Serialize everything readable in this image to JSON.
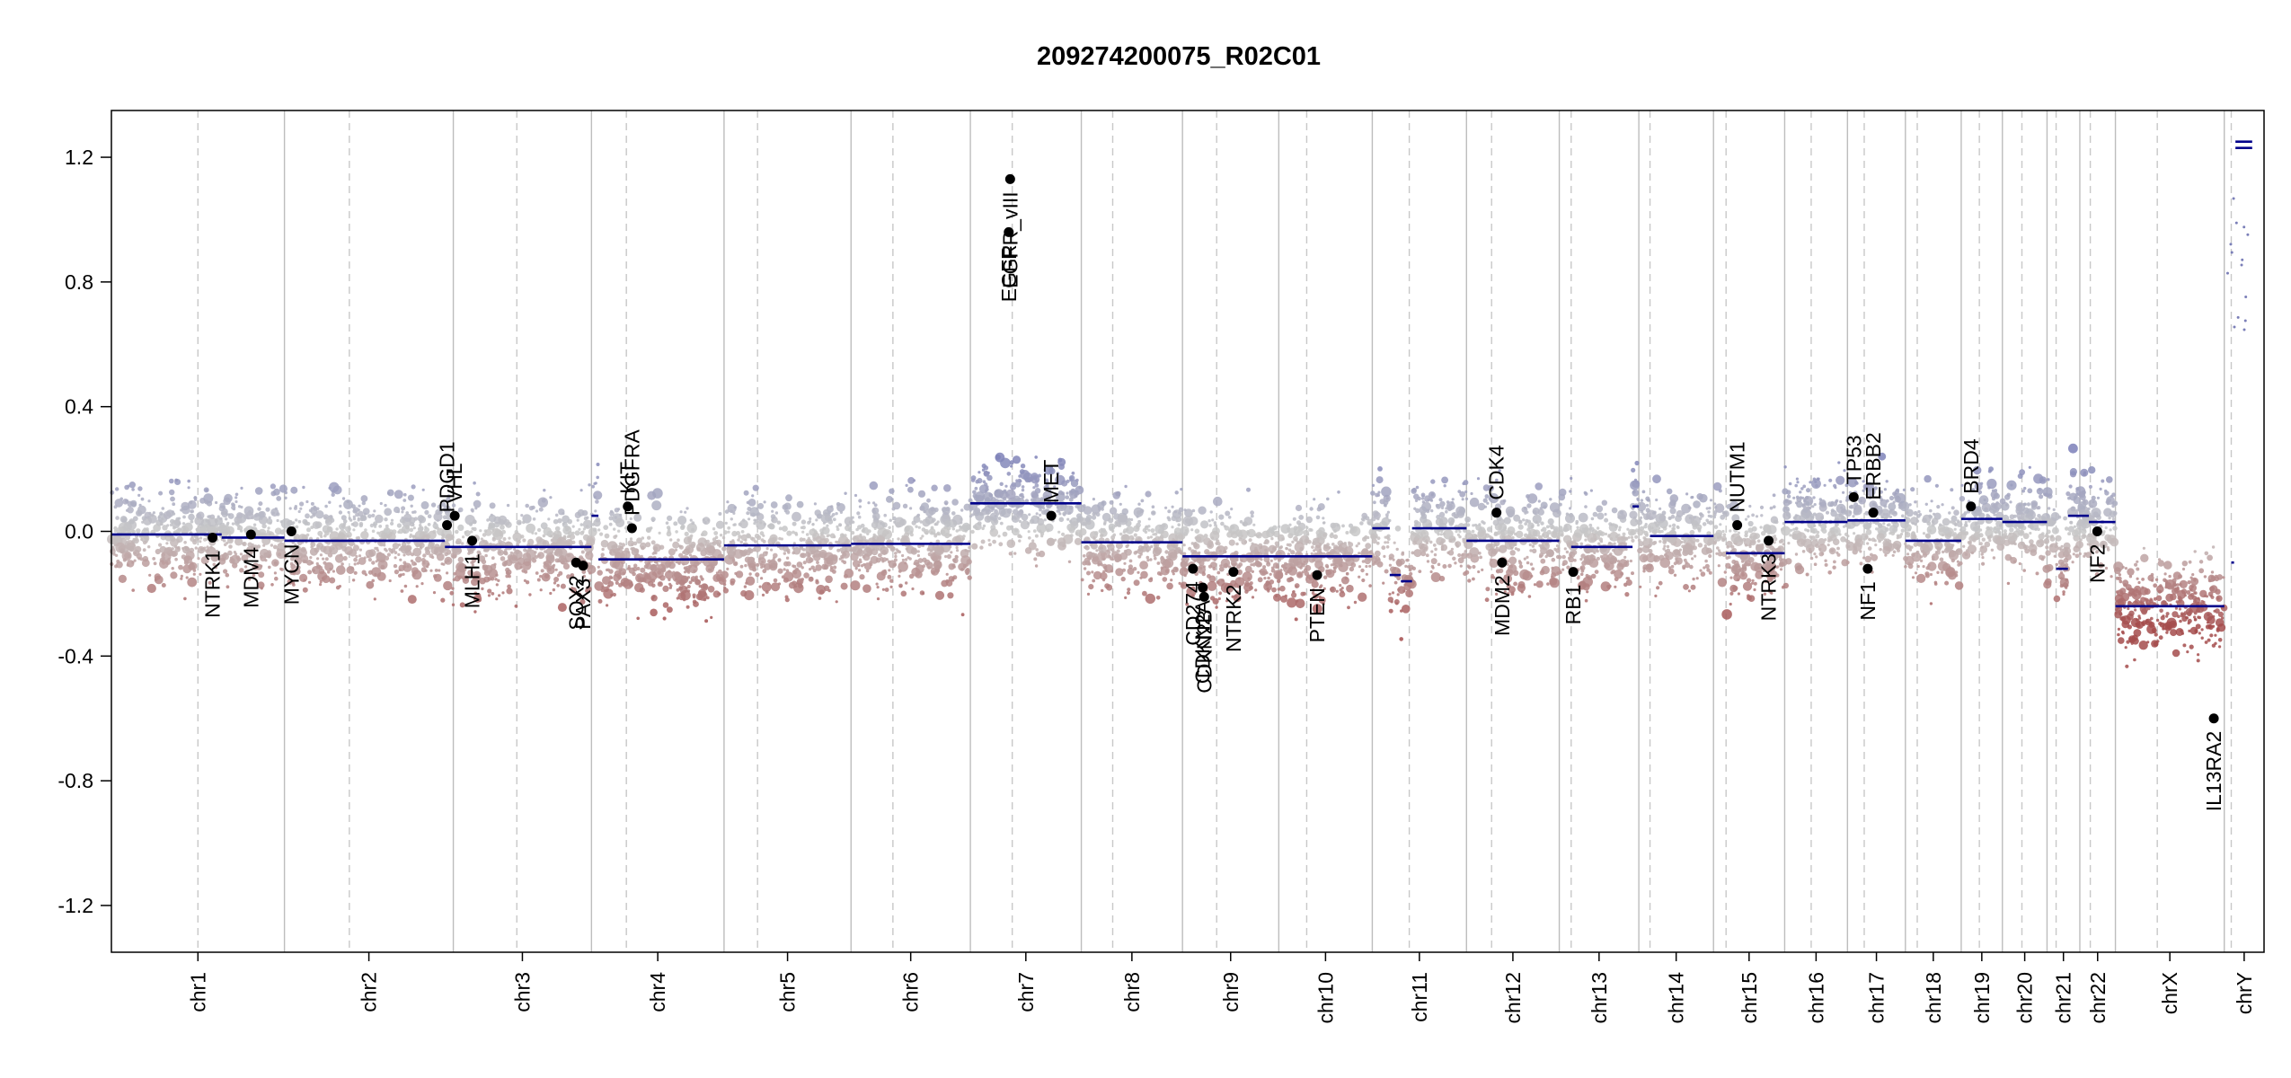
{
  "chart_data": {
    "type": "scatter",
    "title": "209274200075_R02C01",
    "xlabel": "",
    "ylabel": "",
    "ylim": [
      -1.35,
      1.35
    ],
    "y_ticks": [
      "-1.2",
      "-0.8",
      "-0.4",
      "0.0",
      "0.4",
      "0.8",
      "1.2"
    ],
    "grid": "chromosome boundaries (solid) and centromeres (dashed)",
    "colors": {
      "gain": "#7B7FB8",
      "neutral": "#C8C8C8",
      "loss": "#A44C4C",
      "segment": "#00008B",
      "gene": "#000000",
      "boundary": "#BDBDBD",
      "centromere": "#C8C8C8"
    },
    "chromosomes": [
      {
        "name": "chr1",
        "start": 0,
        "end": 248,
        "cen": 124
      },
      {
        "name": "chr2",
        "start": 248,
        "end": 490,
        "cen": 341
      },
      {
        "name": "chr3",
        "start": 490,
        "end": 688,
        "cen": 581
      },
      {
        "name": "chr4",
        "start": 688,
        "end": 878,
        "cen": 738
      },
      {
        "name": "chr5",
        "start": 878,
        "end": 1060,
        "cen": 926
      },
      {
        "name": "chr6",
        "start": 1060,
        "end": 1231,
        "cen": 1120
      },
      {
        "name": "chr7",
        "start": 1231,
        "end": 1390,
        "cen": 1291
      },
      {
        "name": "chr8",
        "start": 1390,
        "end": 1535,
        "cen": 1435
      },
      {
        "name": "chr9",
        "start": 1535,
        "end": 1673,
        "cen": 1584
      },
      {
        "name": "chr10",
        "start": 1673,
        "end": 1807,
        "cen": 1713
      },
      {
        "name": "chr11",
        "start": 1807,
        "end": 1942,
        "cen": 1860
      },
      {
        "name": "chr12",
        "start": 1942,
        "end": 2075,
        "cen": 1978
      },
      {
        "name": "chr13",
        "start": 2075,
        "end": 2189,
        "cen": 2092
      },
      {
        "name": "chr14",
        "start": 2189,
        "end": 2296,
        "cen": 2205
      },
      {
        "name": "chr15",
        "start": 2296,
        "end": 2398,
        "cen": 2314
      },
      {
        "name": "chr16",
        "start": 2398,
        "end": 2488,
        "cen": 2436
      },
      {
        "name": "chr17",
        "start": 2488,
        "end": 2571,
        "cen": 2512
      },
      {
        "name": "chr18",
        "start": 2571,
        "end": 2651,
        "cen": 2588
      },
      {
        "name": "chr19",
        "start": 2651,
        "end": 2710,
        "cen": 2677
      },
      {
        "name": "chr20",
        "start": 2710,
        "end": 2774,
        "cen": 2738
      },
      {
        "name": "chr21",
        "start": 2774,
        "end": 2821,
        "cen": 2787
      },
      {
        "name": "chr22",
        "start": 2821,
        "end": 2872,
        "cen": 2836
      },
      {
        "name": "chrX",
        "start": 2872,
        "end": 3028,
        "cen": 2932
      },
      {
        "name": "chrY",
        "start": 3028,
        "end": 3085,
        "cen": 3038
      }
    ],
    "segments": [
      {
        "x0": 0,
        "x1": 158,
        "y": -0.01
      },
      {
        "x0": 158,
        "x1": 248,
        "y": -0.02
      },
      {
        "x0": 248,
        "x1": 478,
        "y": -0.03
      },
      {
        "x0": 478,
        "x1": 688,
        "y": -0.05
      },
      {
        "x0": 688,
        "x1": 698,
        "y": 0.05
      },
      {
        "x0": 698,
        "x1": 878,
        "y": -0.09
      },
      {
        "x0": 878,
        "x1": 1060,
        "y": -0.045
      },
      {
        "x0": 1060,
        "x1": 1231,
        "y": -0.04
      },
      {
        "x0": 1231,
        "x1": 1390,
        "y": 0.09
      },
      {
        "x0": 1390,
        "x1": 1535,
        "y": -0.035
      },
      {
        "x0": 1535,
        "x1": 1807,
        "y": -0.08
      },
      {
        "x0": 1807,
        "x1": 1832,
        "y": 0.01
      },
      {
        "x0": 1832,
        "x1": 1848,
        "y": -0.14
      },
      {
        "x0": 1848,
        "x1": 1864,
        "y": -0.16
      },
      {
        "x0": 1864,
        "x1": 1942,
        "y": 0.01
      },
      {
        "x0": 1942,
        "x1": 2075,
        "y": -0.03
      },
      {
        "x0": 2092,
        "x1": 2180,
        "y": -0.05
      },
      {
        "x0": 2180,
        "x1": 2189,
        "y": 0.08
      },
      {
        "x0": 2205,
        "x1": 2296,
        "y": -0.015
      },
      {
        "x0": 2314,
        "x1": 2398,
        "y": -0.07
      },
      {
        "x0": 2398,
        "x1": 2488,
        "y": 0.03
      },
      {
        "x0": 2488,
        "x1": 2571,
        "y": 0.035
      },
      {
        "x0": 2571,
        "x1": 2651,
        "y": -0.03
      },
      {
        "x0": 2651,
        "x1": 2710,
        "y": 0.04
      },
      {
        "x0": 2710,
        "x1": 2774,
        "y": 0.03
      },
      {
        "x0": 2787,
        "x1": 2804,
        "y": -0.12
      },
      {
        "x0": 2804,
        "x1": 2821,
        "y": 0.05
      },
      {
        "x0": 2821,
        "x1": 2834,
        "y": 0.05
      },
      {
        "x0": 2834,
        "x1": 2872,
        "y": 0.03
      },
      {
        "x0": 2872,
        "x1": 3028,
        "y": -0.24
      },
      {
        "x0": 3038,
        "x1": 3042,
        "y": -0.1
      },
      {
        "x0": 3044,
        "x1": 3068,
        "y": 1.23
      },
      {
        "x0": 3044,
        "x1": 3068,
        "y": 1.25
      }
    ],
    "genes": [
      {
        "name": "NTRK1",
        "x": 145,
        "y": -0.02,
        "label_dir": "down"
      },
      {
        "name": "MDM4",
        "x": 200,
        "y": -0.01,
        "label_dir": "down"
      },
      {
        "name": "MYCN",
        "x": 258,
        "y": 0.0,
        "label_dir": "down"
      },
      {
        "name": "PDGD1",
        "x": 481,
        "y": 0.02,
        "label_dir": "up"
      },
      {
        "name": "VHL",
        "x": 492,
        "y": 0.05,
        "label_dir": "up"
      },
      {
        "name": "MLH1",
        "x": 517,
        "y": -0.03,
        "label_dir": "down"
      },
      {
        "name": "SOX2",
        "x": 666,
        "y": -0.1,
        "label_dir": "down"
      },
      {
        "name": "PAX3",
        "x": 676,
        "y": -0.11,
        "label_dir": "down"
      },
      {
        "name": "PDGFRA",
        "x": 746,
        "y": 0.01,
        "label_dir": "up"
      },
      {
        "name": "KIT",
        "x": 740,
        "y": 0.08,
        "label_dir": "up"
      },
      {
        "name": "EGFR",
        "x": 1286,
        "y": 0.96,
        "label_dir": "down"
      },
      {
        "name": "EGFR_vIII",
        "x": 1288,
        "y": 1.13,
        "label_dir": "down"
      },
      {
        "name": "MET",
        "x": 1347,
        "y": 0.05,
        "label_dir": "up"
      },
      {
        "name": "CD274",
        "x": 1550,
        "y": -0.12,
        "label_dir": "down"
      },
      {
        "name": "CDKN2A",
        "x": 1564,
        "y": -0.18,
        "label_dir": "down"
      },
      {
        "name": "CDKN2B",
        "x": 1566,
        "y": -0.21,
        "label_dir": "down"
      },
      {
        "name": "NTRK2",
        "x": 1608,
        "y": -0.13,
        "label_dir": "down"
      },
      {
        "name": "PTEN",
        "x": 1728,
        "y": -0.14,
        "label_dir": "down"
      },
      {
        "name": "CDK4",
        "x": 1985,
        "y": 0.06,
        "label_dir": "up"
      },
      {
        "name": "MDM2",
        "x": 1993,
        "y": -0.1,
        "label_dir": "down"
      },
      {
        "name": "RB1",
        "x": 2095,
        "y": -0.13,
        "label_dir": "down"
      },
      {
        "name": "NUTM1",
        "x": 2330,
        "y": 0.02,
        "label_dir": "up"
      },
      {
        "name": "NTRK3",
        "x": 2375,
        "y": -0.03,
        "label_dir": "down"
      },
      {
        "name": "TP53",
        "x": 2497,
        "y": 0.11,
        "label_dir": "up"
      },
      {
        "name": "ERBB2",
        "x": 2525,
        "y": 0.06,
        "label_dir": "up"
      },
      {
        "name": "NF1",
        "x": 2517,
        "y": -0.12,
        "label_dir": "down"
      },
      {
        "name": "BRD4",
        "x": 2665,
        "y": 0.08,
        "label_dir": "up"
      },
      {
        "name": "NF2",
        "x": 2846,
        "y": 0.0,
        "label_dir": "down"
      },
      {
        "name": "IL13RA2",
        "x": 3013,
        "y": -0.6,
        "label_dir": "down"
      }
    ]
  }
}
